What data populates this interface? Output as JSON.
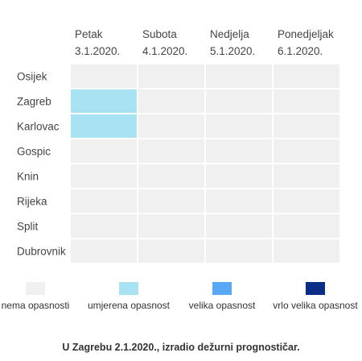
{
  "chart_data": {
    "type": "heatmap",
    "columns": [
      {
        "day": "Petak",
        "date": "3.1.2020."
      },
      {
        "day": "Subota",
        "date": "4.1.2020."
      },
      {
        "day": "Nedjelja",
        "date": "5.1.2020."
      },
      {
        "day": "Ponedjeljak",
        "date": "6.1.2020."
      }
    ],
    "rows": [
      "Osijek",
      "Zagreb",
      "Karlovac",
      "Gospic",
      "Knin",
      "Rijeka",
      "Split",
      "Dubrovnik"
    ],
    "values": [
      [
        0,
        0,
        0,
        0
      ],
      [
        1,
        0,
        0,
        0
      ],
      [
        1,
        0,
        0,
        0
      ],
      [
        0,
        0,
        0,
        0
      ],
      [
        0,
        0,
        0,
        0
      ],
      [
        0,
        0,
        0,
        0
      ],
      [
        0,
        0,
        0,
        0
      ],
      [
        0,
        0,
        0,
        0
      ]
    ],
    "levels": [
      {
        "label": "nema opasnosti",
        "color": "#f0f0f0"
      },
      {
        "label": "umjerena opasnost",
        "color": "#a9e2f3"
      },
      {
        "label": "velika opasnost",
        "color": "#58a8f5"
      },
      {
        "label": "vrlo velika opasnost",
        "color": "#0b2d86"
      }
    ]
  },
  "footer": "U Zagrebu 2.1.2020., izradio dežurni prognostičar."
}
